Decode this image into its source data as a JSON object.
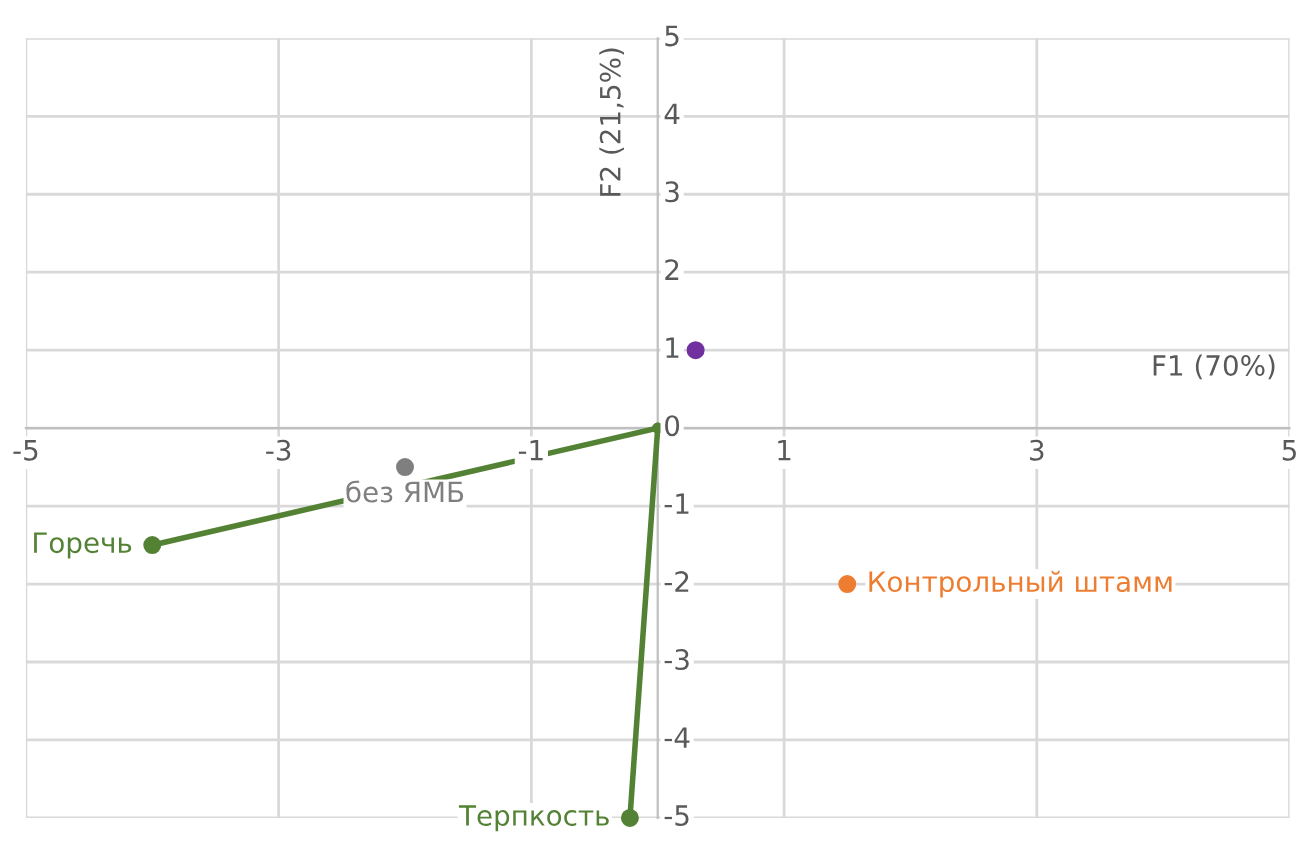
{
  "chart_data": {
    "type": "scatter",
    "xlabel": "F1 (70%)",
    "ylabel": "F2 (21,5%)",
    "xlim": [
      -5,
      5
    ],
    "ylim": [
      -5,
      5
    ],
    "xticks": [
      -5,
      -3,
      -1,
      1,
      3,
      5
    ],
    "yticks": [
      -5,
      -4,
      -3,
      -2,
      -1,
      0,
      1,
      2,
      3,
      4,
      5
    ],
    "grid": true,
    "legend": false,
    "marker": "circle",
    "series": [
      {
        "type": "line",
        "color": "#548235",
        "x": [
          0,
          -4
        ],
        "values": [
          0,
          -1.5
        ]
      },
      {
        "type": "line",
        "color": "#548235",
        "x": [
          0,
          -0.22
        ],
        "values": [
          0,
          -5
        ]
      },
      {
        "name": "Горечь",
        "color": "#548235",
        "x": [
          -4
        ],
        "values": [
          -1.5
        ]
      },
      {
        "name": "Терпкость",
        "color": "#548235",
        "x": [
          -0.22
        ],
        "values": [
          -5
        ]
      },
      {
        "name": "без ЯМБ",
        "color": "#7f7f7f",
        "x": [
          -2
        ],
        "values": [
          -0.5
        ]
      },
      {
        "name": "Контрольный штамм",
        "color": "#ed7d31",
        "x": [
          1.5
        ],
        "values": [
          -2
        ]
      },
      {
        "color": "#7030a0",
        "x": [
          0.3
        ],
        "values": [
          1
        ]
      }
    ]
  }
}
